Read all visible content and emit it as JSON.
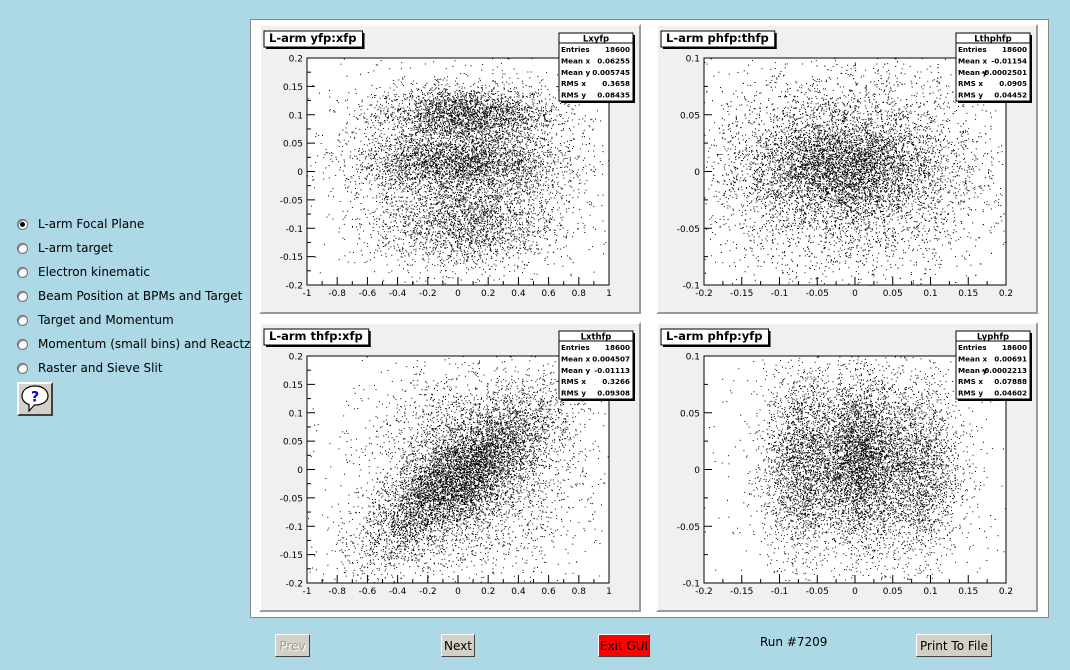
{
  "menu": {
    "options": [
      {
        "label": "L-arm Focal Plane",
        "checked": true
      },
      {
        "label": "L-arm target",
        "checked": false
      },
      {
        "label": "Electron kinematic",
        "checked": false
      },
      {
        "label": "Beam Position at BPMs and Target",
        "checked": false
      },
      {
        "label": "Target and Momentum",
        "checked": false
      },
      {
        "label": "Momentum (small bins) and Reactz",
        "checked": false
      },
      {
        "label": "Raster and Sieve Slit",
        "checked": false
      }
    ],
    "help_icon": "question-mark-icon"
  },
  "footer": {
    "prev_label": "Prev",
    "next_label": "Next",
    "exit_label": "Exit GUI",
    "run_label": "Run #7209",
    "print_label": "Print To File",
    "exit_color": "#ff0000"
  },
  "chart_data": [
    {
      "type": "scatter",
      "title": "L-arm yfp:xfp",
      "xlim": [
        -1,
        1
      ],
      "ylim": [
        -0.2,
        0.2
      ],
      "xticks": [
        "-1",
        "-0.8",
        "-0.6",
        "-0.4",
        "-0.2",
        "0",
        "0.2",
        "0.4",
        "0.6",
        "0.8",
        "1"
      ],
      "yticks": [
        "-0.2",
        "-0.15",
        "-0.1",
        "-0.05",
        "0",
        "0.05",
        "0.1",
        "0.15",
        "0.2"
      ],
      "stats": {
        "name": "Lxyfp",
        "rows": [
          {
            "label": "Entries",
            "value": "18600"
          },
          {
            "label": "Mean x",
            "value": "0.06255"
          },
          {
            "label": "Mean y",
            "value": "0.005745"
          },
          {
            "label": "RMS x",
            "value": "0.3658"
          },
          {
            "label": "RMS y",
            "value": "0.08435"
          }
        ]
      },
      "clusters": [
        {
          "cx": 0.05,
          "cy": 0.1,
          "sx": 0.3,
          "sy": 0.025,
          "w": 0.28
        },
        {
          "cx": 0.0,
          "cy": 0.015,
          "sx": 0.35,
          "sy": 0.025,
          "w": 0.28
        },
        {
          "cx": 0.05,
          "cy": -0.09,
          "sx": 0.3,
          "sy": 0.04,
          "w": 0.22
        },
        {
          "cx": 0.05,
          "cy": 0.0,
          "sx": 0.4,
          "sy": 0.09,
          "w": 0.22
        }
      ]
    },
    {
      "type": "scatter",
      "title": "L-arm phfp:thfp",
      "xlim": [
        -0.2,
        0.2
      ],
      "ylim": [
        -0.1,
        0.1
      ],
      "xticks": [
        "-0.2",
        "-0.15",
        "-0.1",
        "-0.05",
        "0",
        "0.05",
        "0.1",
        "0.15",
        "0.2"
      ],
      "yticks": [
        "-0.1",
        "-0.05",
        "0",
        "0.05",
        "0.1"
      ],
      "stats": {
        "name": "Lthphfp",
        "rows": [
          {
            "label": "Entries",
            "value": "18600"
          },
          {
            "label": "Mean x",
            "value": "-0.01154"
          },
          {
            "label": "Mean y",
            "value": "-0.0002501"
          },
          {
            "label": "RMS x",
            "value": "0.0905"
          },
          {
            "label": "RMS y",
            "value": "0.04452"
          }
        ]
      },
      "clusters": [
        {
          "cx": -0.01,
          "cy": 0.0,
          "sx": 0.09,
          "sy": 0.045,
          "w": 0.7
        },
        {
          "cx": -0.02,
          "cy": 0.005,
          "sx": 0.06,
          "sy": 0.02,
          "w": 0.3
        }
      ]
    },
    {
      "type": "scatter",
      "title": "L-arm thfp:xfp",
      "xlim": [
        -1,
        1
      ],
      "ylim": [
        -0.2,
        0.2
      ],
      "xticks": [
        "-1",
        "-0.8",
        "-0.6",
        "-0.4",
        "-0.2",
        "0",
        "0.2",
        "0.4",
        "0.6",
        "0.8",
        "1"
      ],
      "yticks": [
        "-0.2",
        "-0.15",
        "-0.1",
        "-0.05",
        "0",
        "0.05",
        "0.1",
        "0.15",
        "0.2"
      ],
      "stats": {
        "name": "Lxthfp",
        "rows": [
          {
            "label": "Entries",
            "value": "18600"
          },
          {
            "label": "Mean x",
            "value": "0.004507"
          },
          {
            "label": "Mean y",
            "value": "-0.01113"
          },
          {
            "label": "RMS x",
            "value": "0.3266"
          },
          {
            "label": "RMS y",
            "value": "0.09308"
          }
        ]
      },
      "clusters": [
        {
          "cx": 0.0,
          "cy": -0.015,
          "sx": 0.32,
          "sy": 0.045,
          "w": 0.6,
          "slope": 0.18
        },
        {
          "cx": 0.1,
          "cy": 0.0,
          "sx": 0.35,
          "sy": 0.09,
          "w": 0.4
        }
      ]
    },
    {
      "type": "scatter",
      "title": "L-arm phfp:yfp",
      "xlim": [
        -0.2,
        0.2
      ],
      "ylim": [
        -0.1,
        0.1
      ],
      "xticks": [
        "-0.2",
        "-0.15",
        "-0.1",
        "-0.05",
        "0",
        "0.05",
        "0.1",
        "0.15",
        "0.2"
      ],
      "yticks": [
        "-0.1",
        "-0.05",
        "0",
        "0.05",
        "0.1"
      ],
      "stats": {
        "name": "Lyphfp",
        "rows": [
          {
            "label": "Entries",
            "value": "18600"
          },
          {
            "label": "Mean x",
            "value": "0.00691"
          },
          {
            "label": "Mean y",
            "value": "-0.0002213"
          },
          {
            "label": "RMS x",
            "value": "0.07888"
          },
          {
            "label": "RMS y",
            "value": "0.04602"
          }
        ]
      },
      "clusters": [
        {
          "cx": -0.07,
          "cy": 0.005,
          "sx": 0.025,
          "sy": 0.04,
          "w": 0.25
        },
        {
          "cx": 0.005,
          "cy": 0.01,
          "sx": 0.025,
          "sy": 0.035,
          "w": 0.35
        },
        {
          "cx": 0.08,
          "cy": 0.0,
          "sx": 0.03,
          "sy": 0.04,
          "w": 0.25
        },
        {
          "cx": 0.005,
          "cy": 0.0,
          "sx": 0.08,
          "sy": 0.05,
          "w": 0.15
        }
      ]
    }
  ]
}
